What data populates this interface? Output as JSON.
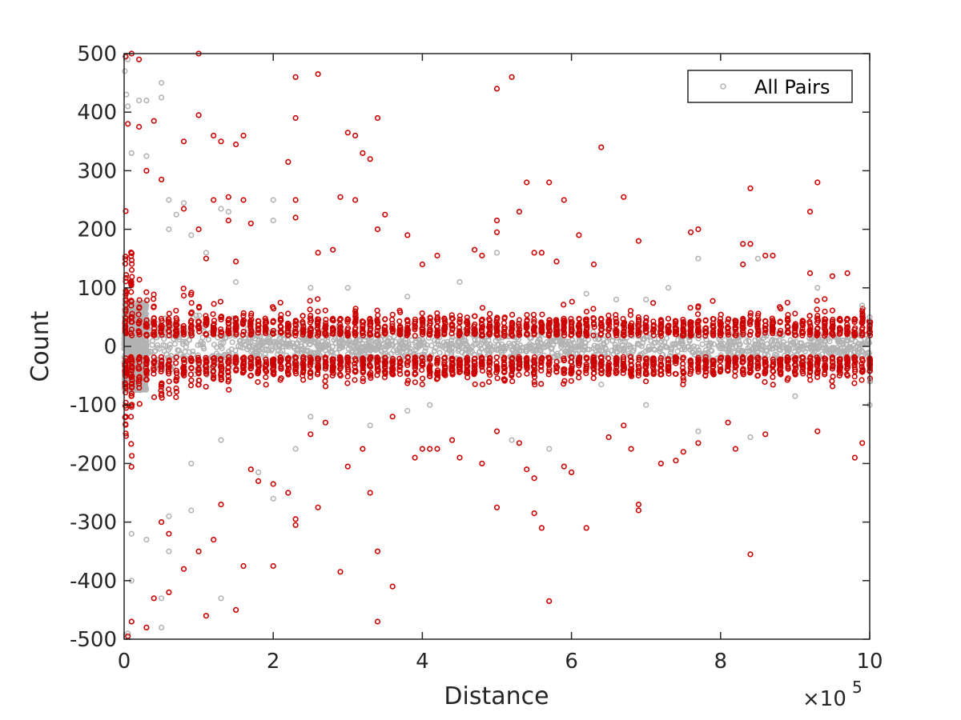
{
  "chart_data": {
    "type": "scatter",
    "title": "",
    "xlabel": "Distance",
    "ylabel": "Count",
    "xlim": [
      0,
      1000000
    ],
    "ylim": [
      -500,
      500
    ],
    "x_tick_values": [
      0,
      200000,
      400000,
      600000,
      800000,
      1000000
    ],
    "x_tick_labels": [
      "0",
      "2",
      "4",
      "6",
      "8",
      "10"
    ],
    "x_exponent_label": "×10",
    "x_exponent_power": "5",
    "y_tick_values": [
      500,
      400,
      300,
      200,
      100,
      0,
      -100,
      -200,
      -300,
      -400,
      -500
    ],
    "y_tick_labels": [
      "500",
      "400",
      "300",
      "200",
      "100",
      "0",
      "-100",
      "-200",
      "-300",
      "-400",
      "-500"
    ],
    "grid": false,
    "legend_position": "top-right",
    "colors": {
      "all_pairs": "#b3b3b3",
      "highlighted": "#cc0000",
      "axis": "#262626"
    },
    "series": [
      {
        "name": "All Pairs",
        "marker": "open-circle",
        "points": [
          [
            1000,
            470
          ],
          [
            3000,
            430
          ],
          [
            5000,
            410
          ],
          [
            20000,
            420
          ],
          [
            30000,
            420
          ],
          [
            50000,
            450
          ],
          [
            50000,
            425
          ],
          [
            60000,
            250
          ],
          [
            70000,
            225
          ],
          [
            80000,
            245
          ],
          [
            130000,
            235
          ],
          [
            140000,
            230
          ],
          [
            200000,
            250
          ],
          [
            200000,
            215
          ],
          [
            10000,
            330
          ],
          [
            30000,
            325
          ],
          [
            60000,
            200
          ],
          [
            90000,
            190
          ],
          [
            110000,
            160
          ],
          [
            150000,
            110
          ],
          [
            250000,
            100
          ],
          [
            300000,
            100
          ],
          [
            380000,
            85
          ],
          [
            500000,
            160
          ],
          [
            620000,
            90
          ],
          [
            660000,
            80
          ],
          [
            700000,
            80
          ],
          [
            770000,
            150
          ],
          [
            850000,
            150
          ],
          [
            930000,
            100
          ],
          [
            990000,
            70
          ],
          [
            1000000,
            50
          ],
          [
            1000000,
            -60
          ],
          [
            1000000,
            -100
          ],
          [
            10000,
            -320
          ],
          [
            10000,
            -400
          ],
          [
            10000,
            -470
          ],
          [
            30000,
            -330
          ],
          [
            50000,
            -430
          ],
          [
            50000,
            -480
          ],
          [
            60000,
            -290
          ],
          [
            60000,
            -350
          ],
          [
            90000,
            -280
          ],
          [
            130000,
            -430
          ],
          [
            200000,
            -260
          ],
          [
            230000,
            -175
          ],
          [
            330000,
            -135
          ],
          [
            520000,
            -160
          ],
          [
            570000,
            -175
          ],
          [
            640000,
            -65
          ],
          [
            700000,
            -100
          ],
          [
            770000,
            -145
          ],
          [
            840000,
            -155
          ],
          [
            900000,
            -85
          ],
          [
            130000,
            -160
          ],
          [
            180000,
            -215
          ],
          [
            250000,
            -120
          ],
          [
            380000,
            -110
          ],
          [
            5000,
            490
          ],
          [
            5000,
            -490
          ],
          [
            90000,
            -200
          ],
          [
            450000,
            110
          ],
          [
            410000,
            -100
          ],
          [
            730000,
            100
          ]
        ]
      },
      {
        "name": "",
        "marker": "open-circle",
        "points": [
          [
            2000,
            495
          ],
          [
            10000,
            500
          ],
          [
            20000,
            490
          ],
          [
            100000,
            500
          ],
          [
            40000,
            385
          ],
          [
            100000,
            395
          ],
          [
            20000,
            375
          ],
          [
            5000,
            380
          ],
          [
            230000,
            460
          ],
          [
            260000,
            465
          ],
          [
            500000,
            440
          ],
          [
            520000,
            460
          ],
          [
            230000,
            390
          ],
          [
            300000,
            365
          ],
          [
            310000,
            360
          ],
          [
            340000,
            390
          ],
          [
            120000,
            360
          ],
          [
            130000,
            350
          ],
          [
            150000,
            345
          ],
          [
            160000,
            360
          ],
          [
            80000,
            350
          ],
          [
            320000,
            330
          ],
          [
            330000,
            320
          ],
          [
            220000,
            315
          ],
          [
            640000,
            340
          ],
          [
            30000,
            300
          ],
          [
            50000,
            285
          ],
          [
            540000,
            280
          ],
          [
            570000,
            280
          ],
          [
            930000,
            280
          ],
          [
            840000,
            270
          ],
          [
            140000,
            255
          ],
          [
            160000,
            250
          ],
          [
            230000,
            250
          ],
          [
            290000,
            255
          ],
          [
            310000,
            250
          ],
          [
            670000,
            255
          ],
          [
            590000,
            250
          ],
          [
            920000,
            230
          ],
          [
            120000,
            250
          ],
          [
            80000,
            235
          ],
          [
            350000,
            225
          ],
          [
            500000,
            215
          ],
          [
            530000,
            230
          ],
          [
            230000,
            220
          ],
          [
            140000,
            215
          ],
          [
            170000,
            210
          ],
          [
            340000,
            200
          ],
          [
            100000,
            200
          ],
          [
            380000,
            190
          ],
          [
            500000,
            195
          ],
          [
            610000,
            190
          ],
          [
            760000,
            195
          ],
          [
            770000,
            200
          ],
          [
            690000,
            180
          ],
          [
            830000,
            175
          ],
          [
            840000,
            175
          ],
          [
            870000,
            155
          ],
          [
            920000,
            125
          ],
          [
            950000,
            120
          ],
          [
            970000,
            125
          ],
          [
            860000,
            155
          ],
          [
            550000,
            160
          ],
          [
            560000,
            160
          ],
          [
            580000,
            145
          ],
          [
            470000,
            165
          ],
          [
            400000,
            140
          ],
          [
            630000,
            140
          ],
          [
            830000,
            140
          ],
          [
            480000,
            155
          ],
          [
            420000,
            155
          ],
          [
            260000,
            160
          ],
          [
            280000,
            165
          ],
          [
            110000,
            150
          ],
          [
            150000,
            145
          ],
          [
            5000,
            -495
          ],
          [
            30000,
            -480
          ],
          [
            10000,
            -470
          ],
          [
            40000,
            -430
          ],
          [
            60000,
            -420
          ],
          [
            110000,
            -460
          ],
          [
            150000,
            -450
          ],
          [
            200000,
            -375
          ],
          [
            120000,
            -330
          ],
          [
            160000,
            -375
          ],
          [
            80000,
            -380
          ],
          [
            100000,
            -350
          ],
          [
            230000,
            -305
          ],
          [
            230000,
            -295
          ],
          [
            260000,
            -275
          ],
          [
            330000,
            -250
          ],
          [
            290000,
            -385
          ],
          [
            340000,
            -350
          ],
          [
            340000,
            -470
          ],
          [
            360000,
            -410
          ],
          [
            570000,
            -435
          ],
          [
            560000,
            -310
          ],
          [
            550000,
            -285
          ],
          [
            620000,
            -310
          ],
          [
            690000,
            -270
          ],
          [
            690000,
            -280
          ],
          [
            840000,
            -355
          ],
          [
            500000,
            -275
          ],
          [
            60000,
            -320
          ],
          [
            50000,
            -300
          ],
          [
            130000,
            -270
          ],
          [
            180000,
            -230
          ],
          [
            170000,
            -210
          ],
          [
            200000,
            -235
          ],
          [
            220000,
            -250
          ],
          [
            300000,
            -205
          ],
          [
            390000,
            -190
          ],
          [
            420000,
            -175
          ],
          [
            440000,
            -160
          ],
          [
            450000,
            -190
          ],
          [
            480000,
            -200
          ],
          [
            500000,
            -145
          ],
          [
            530000,
            -165
          ],
          [
            540000,
            -210
          ],
          [
            550000,
            -225
          ],
          [
            590000,
            -205
          ],
          [
            600000,
            -215
          ],
          [
            650000,
            -155
          ],
          [
            670000,
            -135
          ],
          [
            680000,
            -175
          ],
          [
            720000,
            -200
          ],
          [
            740000,
            -195
          ],
          [
            750000,
            -180
          ],
          [
            770000,
            -165
          ],
          [
            810000,
            -130
          ],
          [
            820000,
            -175
          ],
          [
            860000,
            -150
          ],
          [
            930000,
            -145
          ],
          [
            990000,
            -165
          ],
          [
            980000,
            -190
          ],
          [
            250000,
            -150
          ],
          [
            320000,
            -175
          ],
          [
            360000,
            -120
          ],
          [
            400000,
            -175
          ],
          [
            410000,
            -175
          ],
          [
            270000,
            -130
          ]
        ]
      }
    ]
  },
  "legend": {
    "label": "All Pairs"
  }
}
